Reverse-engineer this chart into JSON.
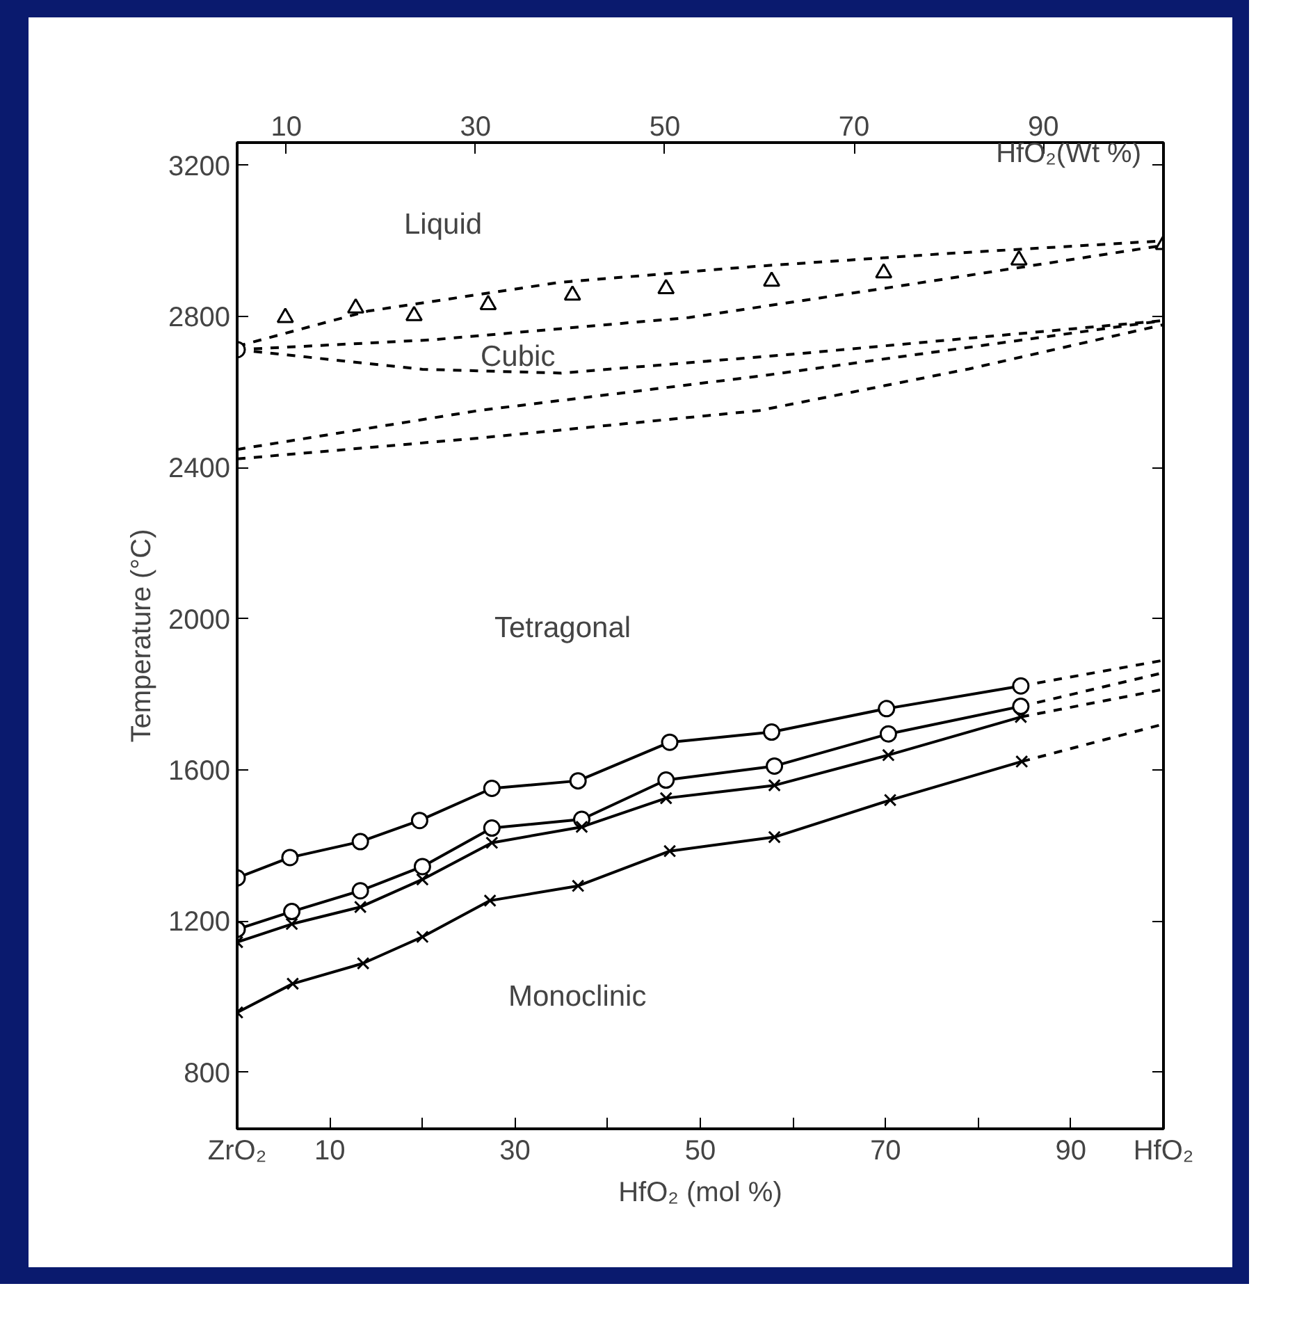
{
  "chart_data": {
    "type": "line",
    "xlabel": "HfO₂ (mol %)",
    "ylabel": "Temperature (°C)",
    "x2label": "HfO₂(Wt %)",
    "xlim": [
      0,
      100
    ],
    "ylim": [
      650,
      3260
    ],
    "xticks": [
      {
        "value": 0,
        "label": "ZrO₂"
      },
      10,
      {
        "value": 20,
        "label": null
      },
      30,
      {
        "value": 40,
        "label": null
      },
      50,
      {
        "value": 60,
        "label": null
      },
      70,
      {
        "value": 80,
        "label": null
      },
      90,
      {
        "value": 100,
        "label": "HfO₂"
      }
    ],
    "yticks": [
      800,
      1200,
      1600,
      2000,
      2400,
      2800,
      3200
    ],
    "x2lim": [
      4.8,
      102.7
    ],
    "x2ticks": [
      10,
      30,
      50,
      70,
      90
    ],
    "grid": false,
    "series": [
      {
        "type": "scatter",
        "marker": "triangle",
        "color": "#000000",
        "x": [
          5.2,
          12.8,
          19.1,
          27.1,
          36.2,
          46.3,
          57.7,
          69.8,
          84.4,
          100
        ],
        "values": [
          2797,
          2822,
          2802,
          2831,
          2856,
          2873,
          2893,
          2915,
          2949,
          2990
        ]
      },
      {
        "type": "scatter",
        "marker": "circle",
        "color": "#000000",
        "x": [
          0
        ],
        "values": [
          2712
        ]
      },
      {
        "line_style": "dashed",
        "color": "#000000",
        "x": [
          0,
          14.1,
          34.8,
          55.7,
          76.4,
          100
        ],
        "values": [
          2721,
          2814,
          2890,
          2932,
          2966,
          3000
        ]
      },
      {
        "line_style": "dashed",
        "color": "#000000",
        "x": [
          0,
          21,
          48.8,
          69.5,
          100
        ],
        "values": [
          2712,
          2738,
          2797,
          2873,
          2988
        ]
      },
      {
        "line_style": "dashed",
        "color": "#000000",
        "x": [
          0,
          20,
          35,
          60,
          100
        ],
        "values": [
          2712,
          2660,
          2650,
          2700,
          2789
        ]
      },
      {
        "line_style": "dashed",
        "color": "#000000",
        "x": [
          0,
          26.1,
          56.4,
          100
        ],
        "values": [
          2448,
          2551,
          2642,
          2789
        ]
      },
      {
        "line_style": "dashed",
        "color": "#000000",
        "x": [
          0,
          26.1,
          56.4,
          79,
          100
        ],
        "values": [
          2423,
          2478,
          2551,
          2661,
          2778
        ]
      },
      {
        "line_style": "solid",
        "marker": "circle",
        "color": "#000000",
        "x": [
          0,
          5.7,
          13.3,
          19.7,
          27.5,
          36.8,
          46.7,
          57.7,
          70.1,
          84.6
        ],
        "values": [
          1314,
          1368,
          1410,
          1466,
          1551,
          1571,
          1673,
          1700,
          1762,
          1822
        ]
      },
      {
        "line_style": "solid",
        "marker": "circle",
        "color": "#000000",
        "x": [
          0,
          5.9,
          13.3,
          20,
          27.5,
          37.2,
          46.3,
          58,
          70.3,
          84.6
        ],
        "values": [
          1178,
          1225,
          1280,
          1344,
          1446,
          1469,
          1573,
          1610,
          1695,
          1768
        ]
      },
      {
        "line_style": "solid",
        "marker": "cross",
        "color": "#000000",
        "x": [
          0,
          5.9,
          13.3,
          20,
          27.5,
          37.2,
          46.3,
          58,
          70.3,
          84.6
        ],
        "values": [
          1144,
          1192,
          1237,
          1310,
          1407,
          1449,
          1525,
          1559,
          1639,
          1740
        ]
      },
      {
        "line_style": "solid",
        "marker": "cross",
        "color": "#000000",
        "x": [
          0,
          6,
          13.6,
          20,
          27.3,
          36.8,
          46.7,
          58,
          70.5,
          84.7
        ],
        "values": [
          958,
          1034,
          1088,
          1158,
          1254,
          1293,
          1385,
          1422,
          1520,
          1622
        ]
      },
      {
        "line_style": "dashed",
        "color": "#000000",
        "x": [
          84.6,
          100
        ],
        "values": [
          1822,
          1890
        ]
      },
      {
        "line_style": "dashed",
        "color": "#000000",
        "x": [
          84.6,
          100
        ],
        "values": [
          1768,
          1857
        ]
      },
      {
        "line_style": "dashed",
        "color": "#000000",
        "x": [
          84.6,
          100
        ],
        "values": [
          1740,
          1813
        ]
      },
      {
        "line_style": "dashed",
        "color": "#000000",
        "x": [
          84.7,
          100
        ],
        "values": [
          1622,
          1721
        ]
      }
    ],
    "annotations": [
      "Liquid",
      "Cubic",
      "Tetragonal",
      "Monoclinic"
    ]
  }
}
